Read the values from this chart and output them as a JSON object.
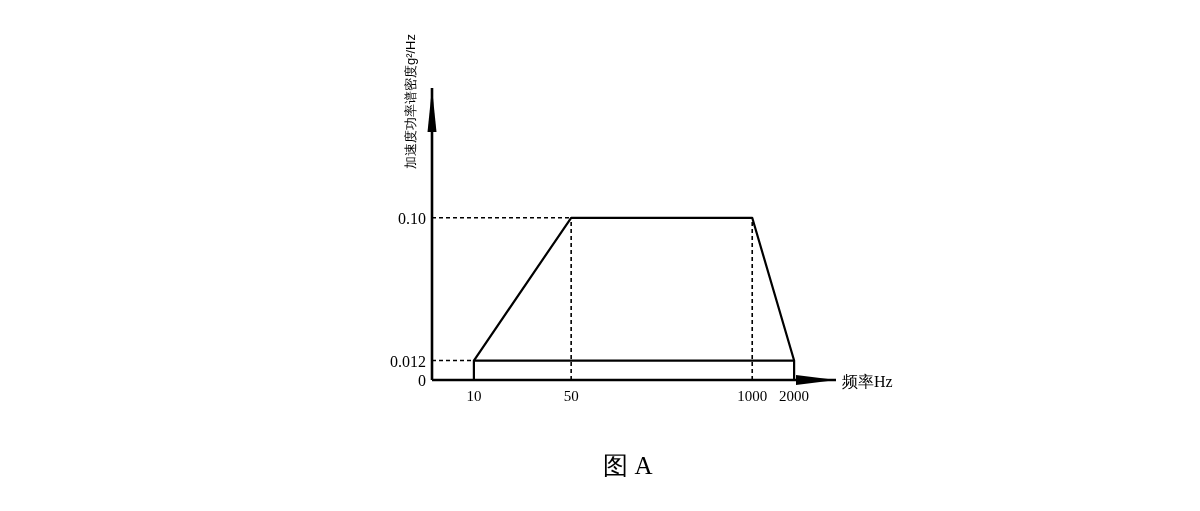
{
  "chart_data": {
    "type": "line",
    "xlabel": "频率Hz",
    "ylabel": "加速度功率谱密度g²/Hz",
    "annotations": [
      "图 A"
    ],
    "log": "x",
    "xlim": [
      5,
      4000
    ],
    "xticks": [
      10,
      50,
      1000,
      2000
    ],
    "ylim": [
      0,
      0.18
    ],
    "yticks": [
      0,
      0.012,
      {
        "value": 0.1,
        "label": "0.10"
      }
    ],
    "series": [
      {
        "color": "#000000",
        "x": [
          10,
          10,
          50,
          1000,
          2000,
          2000
        ],
        "values": [
          0,
          0.012,
          0.1,
          0.1,
          0.012,
          0
        ]
      },
      {
        "color": "#000000",
        "x": [
          10,
          2000
        ],
        "values": [
          0.012,
          0.012
        ]
      },
      {
        "color": "#000000",
        "x": [
          5,
          50
        ],
        "values": [
          0.1,
          0.1
        ],
        "line_style": "dashed"
      },
      {
        "color": "#000000",
        "x": [
          5,
          10
        ],
        "values": [
          0.012,
          0.012
        ],
        "line_style": "dashed"
      },
      {
        "color": "#000000",
        "x": [
          50,
          50
        ],
        "values": [
          0,
          0.1
        ],
        "line_style": "dashed"
      },
      {
        "color": "#000000",
        "x": [
          1000,
          1000
        ],
        "values": [
          0,
          0.1
        ],
        "line_style": "dashed"
      }
    ]
  }
}
